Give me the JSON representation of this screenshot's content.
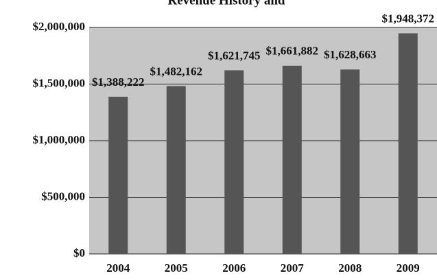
{
  "chart_data": {
    "type": "bar",
    "title": "Revenue History and",
    "categories": [
      "2004",
      "2005",
      "2006",
      "2007",
      "2008",
      "2009"
    ],
    "values": [
      1388222,
      1482162,
      1621745,
      1661882,
      1628663,
      1948372
    ],
    "value_labels": [
      "$1,388,222",
      "$1,482,162",
      "$1,621,745",
      "$1,661,882",
      "$1,628,663",
      "$1,948,372"
    ],
    "color": "#555555",
    "ylim": [
      0,
      2000000
    ],
    "yticks": [
      {
        "value": 0,
        "label": "$0"
      },
      {
        "value": 500000,
        "label": "$500,000"
      },
      {
        "value": 1000000,
        "label": "$1,000,000"
      },
      {
        "value": 1500000,
        "label": "$1,500,000"
      },
      {
        "value": 2000000,
        "label": "$2,000,000"
      }
    ],
    "grid": true
  }
}
